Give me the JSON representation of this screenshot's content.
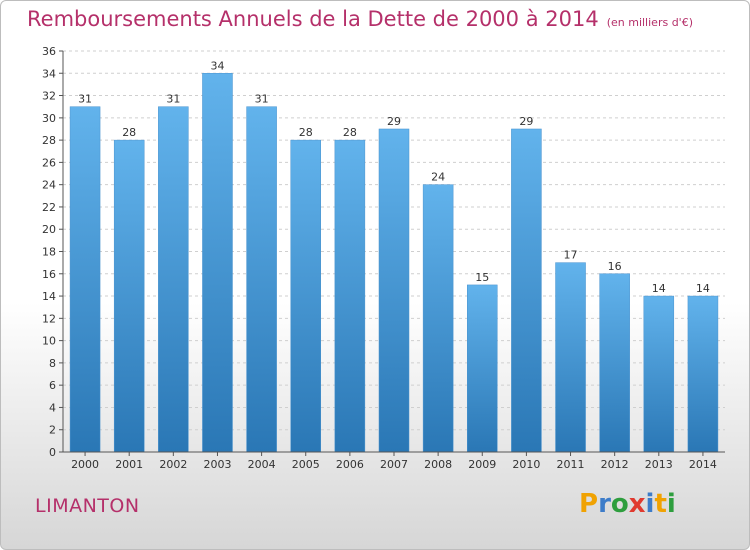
{
  "chart_data": {
    "type": "bar",
    "title": "Remboursements Annuels de la Dette de 2000 à 2014",
    "subtitle": "(en milliers d'€)",
    "categories": [
      "2000",
      "2001",
      "2002",
      "2003",
      "2004",
      "2005",
      "2006",
      "2007",
      "2008",
      "2009",
      "2010",
      "2011",
      "2012",
      "2013",
      "2014"
    ],
    "values": [
      31,
      28,
      31,
      34,
      31,
      28,
      28,
      29,
      24,
      15,
      29,
      17,
      16,
      14,
      14
    ],
    "yticks": [
      0,
      2,
      4,
      6,
      8,
      10,
      12,
      14,
      16,
      18,
      20,
      22,
      24,
      26,
      28,
      30,
      32,
      34,
      36
    ],
    "ylim": [
      0,
      36
    ],
    "xlabel": "",
    "ylabel": ""
  },
  "commune": "LIMANTON",
  "brand": {
    "letters": [
      "P",
      "r",
      "o",
      "x",
      "i",
      "t",
      "i"
    ],
    "colors": [
      "#f0a202",
      "#3d7cc9",
      "#2e9e3e",
      "#e03a2f",
      "#3d7cc9",
      "#f0a202",
      "#2e9e3e"
    ]
  },
  "colors": {
    "title": "#b5306a",
    "bar_top": "#62b3ec",
    "bar_bottom": "#2a77b5"
  }
}
